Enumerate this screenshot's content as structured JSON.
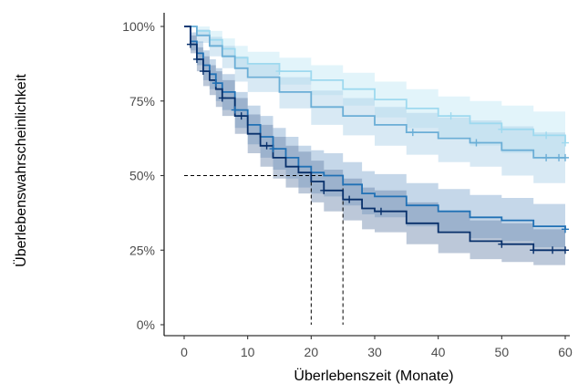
{
  "chart_data": {
    "type": "line",
    "subtype": "kaplan-meier survival curves with confidence bands",
    "xlabel": "Überlebenszeit (Monate)",
    "ylabel": "Überlebenswahrscheinlichkeit",
    "xlim": [
      0,
      60
    ],
    "ylim": [
      0,
      1
    ],
    "x_ticks": [
      0,
      10,
      20,
      30,
      40,
      50,
      60
    ],
    "x_tick_labels": [
      "0",
      "10",
      "20",
      "30",
      "40",
      "50",
      "60"
    ],
    "y_ticks": [
      0,
      0.25,
      0.5,
      0.75,
      1.0
    ],
    "y_tick_labels": [
      "0%",
      "25%",
      "50%",
      "75%",
      "100%"
    ],
    "grid": false,
    "legend": "none",
    "median_lines": [
      {
        "x": 20,
        "y": 0.5
      },
      {
        "x": 25,
        "y": 0.5
      }
    ],
    "series": [
      {
        "color": "#9ed9ef",
        "band_color": "#bfe6f4",
        "x": [
          0,
          2,
          4,
          6,
          8,
          10,
          15,
          20,
          25,
          30,
          35,
          40,
          45,
          50,
          55,
          60
        ],
        "y": [
          1.0,
          0.985,
          0.955,
          0.925,
          0.895,
          0.875,
          0.85,
          0.82,
          0.79,
          0.755,
          0.725,
          0.7,
          0.675,
          0.655,
          0.635,
          0.61
        ],
        "lower": [
          1.0,
          0.97,
          0.93,
          0.895,
          0.86,
          0.835,
          0.805,
          0.77,
          0.735,
          0.695,
          0.66,
          0.63,
          0.6,
          0.575,
          0.555,
          0.53
        ],
        "upper": [
          1.0,
          1.0,
          0.985,
          0.96,
          0.935,
          0.915,
          0.895,
          0.87,
          0.845,
          0.815,
          0.79,
          0.765,
          0.75,
          0.735,
          0.715,
          0.695
        ],
        "censor_x": [
          15,
          42,
          50,
          57,
          60
        ]
      },
      {
        "color": "#6baed6",
        "band_color": "#a9cfe7",
        "x": [
          0,
          2,
          4,
          6,
          8,
          10,
          15,
          20,
          25,
          30,
          35,
          40,
          45,
          50,
          55,
          60
        ],
        "y": [
          1.0,
          0.97,
          0.935,
          0.9,
          0.86,
          0.83,
          0.78,
          0.73,
          0.7,
          0.67,
          0.645,
          0.625,
          0.61,
          0.585,
          0.56,
          0.56
        ],
        "lower": [
          1.0,
          0.945,
          0.9,
          0.86,
          0.815,
          0.78,
          0.725,
          0.67,
          0.635,
          0.6,
          0.57,
          0.545,
          0.53,
          0.5,
          0.475,
          0.475
        ],
        "upper": [
          1.0,
          0.99,
          0.965,
          0.935,
          0.9,
          0.875,
          0.83,
          0.785,
          0.76,
          0.73,
          0.71,
          0.695,
          0.685,
          0.665,
          0.645,
          0.645
        ],
        "censor_x": [
          36,
          46,
          57,
          59,
          60
        ]
      },
      {
        "color": "#2171b5",
        "band_color": "#7fa7cf",
        "x": [
          0,
          1,
          2,
          3,
          4,
          5,
          6,
          8,
          10,
          12,
          14,
          16,
          18,
          20,
          22,
          25,
          28,
          30,
          35,
          40,
          45,
          50,
          55,
          60
        ],
        "y": [
          1.0,
          0.95,
          0.91,
          0.87,
          0.84,
          0.81,
          0.78,
          0.72,
          0.67,
          0.63,
          0.59,
          0.56,
          0.53,
          0.51,
          0.5,
          0.47,
          0.44,
          0.43,
          0.4,
          0.38,
          0.36,
          0.35,
          0.33,
          0.32
        ],
        "lower": [
          1.0,
          0.92,
          0.87,
          0.82,
          0.79,
          0.75,
          0.72,
          0.66,
          0.605,
          0.56,
          0.52,
          0.49,
          0.46,
          0.44,
          0.43,
          0.4,
          0.37,
          0.36,
          0.33,
          0.31,
          0.29,
          0.28,
          0.26,
          0.25
        ],
        "upper": [
          1.0,
          0.98,
          0.95,
          0.92,
          0.89,
          0.86,
          0.84,
          0.78,
          0.735,
          0.7,
          0.66,
          0.63,
          0.6,
          0.585,
          0.575,
          0.545,
          0.515,
          0.505,
          0.475,
          0.455,
          0.435,
          0.425,
          0.405,
          0.395
        ],
        "censor_x": [
          5,
          8,
          14,
          60
        ]
      },
      {
        "color": "#08306b",
        "band_color": "#6a86ab",
        "x": [
          0,
          1,
          2,
          3,
          4,
          5,
          6,
          8,
          10,
          12,
          14,
          16,
          18,
          20,
          22,
          25,
          28,
          30,
          35,
          40,
          45,
          50,
          55,
          60
        ],
        "y": [
          1.0,
          0.94,
          0.89,
          0.85,
          0.82,
          0.79,
          0.76,
          0.7,
          0.64,
          0.6,
          0.56,
          0.53,
          0.51,
          0.48,
          0.45,
          0.42,
          0.39,
          0.38,
          0.34,
          0.31,
          0.28,
          0.27,
          0.25,
          0.25
        ],
        "lower": [
          1.0,
          0.91,
          0.85,
          0.8,
          0.77,
          0.73,
          0.7,
          0.64,
          0.575,
          0.53,
          0.49,
          0.46,
          0.44,
          0.41,
          0.38,
          0.35,
          0.32,
          0.31,
          0.27,
          0.24,
          0.22,
          0.21,
          0.2,
          0.2
        ],
        "upper": [
          1.0,
          0.97,
          0.93,
          0.9,
          0.87,
          0.85,
          0.82,
          0.76,
          0.705,
          0.67,
          0.63,
          0.6,
          0.58,
          0.55,
          0.52,
          0.49,
          0.46,
          0.45,
          0.41,
          0.38,
          0.35,
          0.34,
          0.32,
          0.32
        ],
        "censor_x": [
          1,
          2,
          3,
          6,
          9,
          13,
          22,
          26,
          31,
          50,
          55,
          58,
          60
        ]
      }
    ]
  }
}
